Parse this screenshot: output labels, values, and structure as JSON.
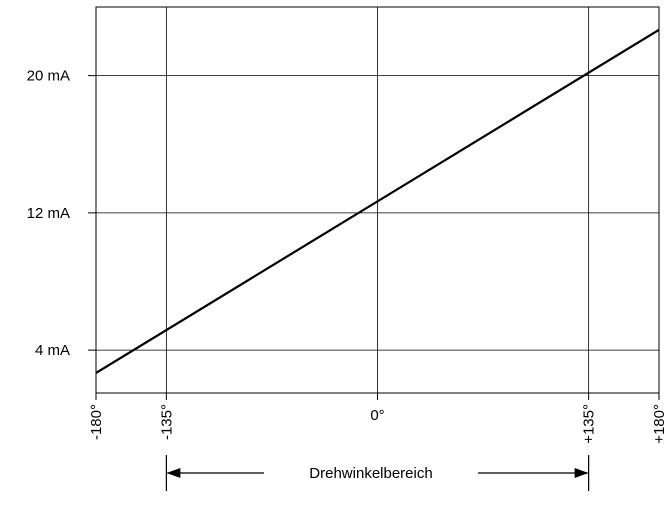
{
  "chart_data": {
    "type": "line",
    "x_ticks": [
      {
        "value": -180,
        "label": "-180°"
      },
      {
        "value": -135,
        "label": "-135°"
      },
      {
        "value": 0,
        "label": "0°"
      },
      {
        "value": 135,
        "label": "+135°"
      },
      {
        "value": 180,
        "label": "+180°"
      }
    ],
    "y_ticks": [
      {
        "value": 4,
        "label": "4 mA"
      },
      {
        "value": 12,
        "label": "12 mA"
      },
      {
        "value": 20,
        "label": "20 mA"
      }
    ],
    "xlim": [
      -180,
      180
    ],
    "ylim": [
      1.5,
      24
    ],
    "series": [
      {
        "x": [
          -180,
          180
        ],
        "y": [
          2.67,
          22.67
        ]
      }
    ],
    "grid": true,
    "range_annotation": {
      "from": -135,
      "to": 135,
      "label": "Drehwinkelbereich"
    }
  }
}
